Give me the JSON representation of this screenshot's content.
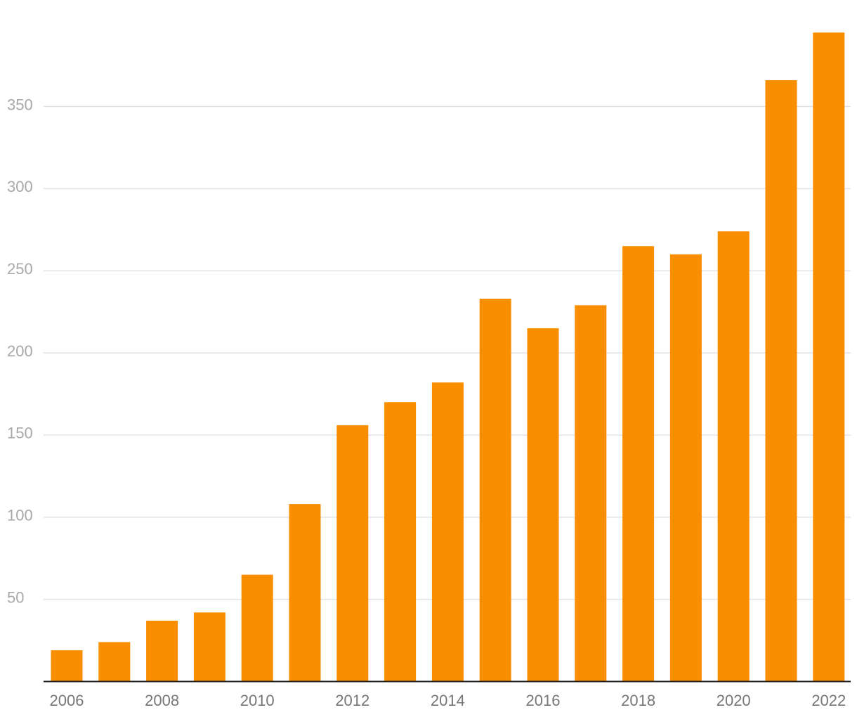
{
  "chart_data": {
    "type": "bar",
    "title": "",
    "xlabel": "",
    "ylabel": "",
    "categories": [
      "2006",
      "2007",
      "2008",
      "2009",
      "2010",
      "2011",
      "2012",
      "2013",
      "2014",
      "2015",
      "2016",
      "2017",
      "2018",
      "2019",
      "2020",
      "2021",
      "2022"
    ],
    "x_tick_labels": [
      "2006",
      "2008",
      "2010",
      "2012",
      "2014",
      "2016",
      "2018",
      "2020",
      "2022"
    ],
    "values": [
      19,
      24,
      37,
      42,
      65,
      108,
      156,
      170,
      182,
      233,
      215,
      229,
      265,
      260,
      274,
      366,
      395
    ],
    "ylim": [
      0,
      400
    ],
    "y_ticks": [
      50,
      100,
      150,
      200,
      250,
      300,
      350
    ],
    "grid": true,
    "legend": "none",
    "bar_color": "#f98e00"
  }
}
